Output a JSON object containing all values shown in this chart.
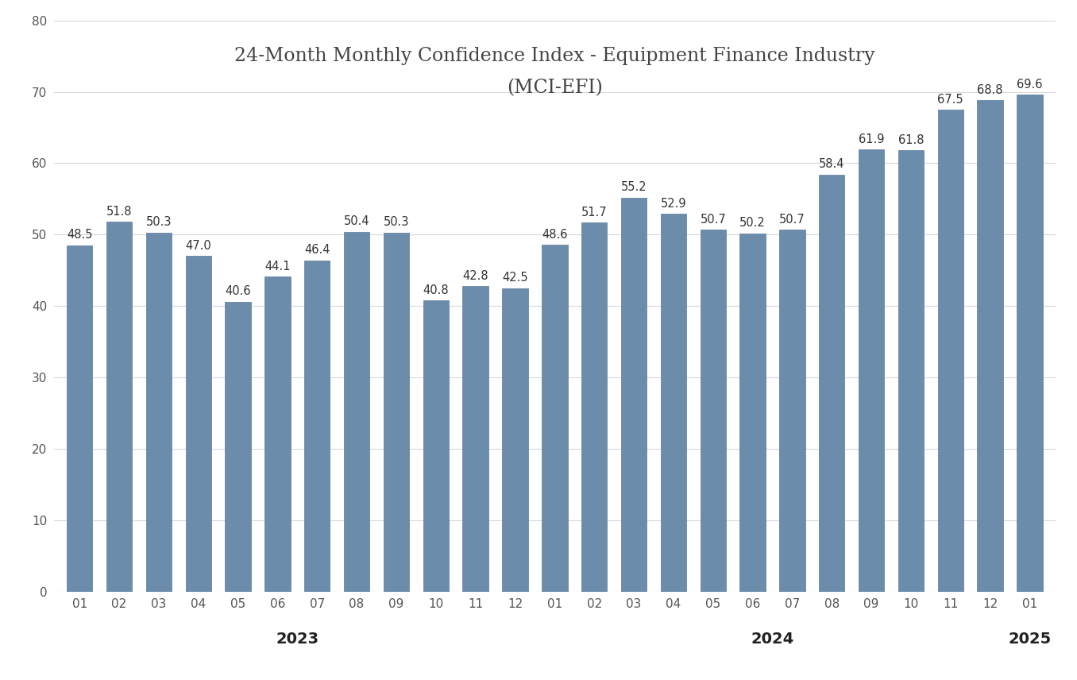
{
  "values": [
    48.5,
    51.8,
    50.3,
    47.0,
    40.6,
    44.1,
    46.4,
    50.4,
    50.3,
    40.8,
    42.8,
    42.5,
    48.6,
    51.7,
    55.2,
    52.9,
    50.7,
    50.2,
    50.7,
    58.4,
    61.9,
    61.8,
    67.5,
    68.8,
    69.6
  ],
  "x_labels": [
    "01",
    "02",
    "03",
    "04",
    "05",
    "06",
    "07",
    "08",
    "09",
    "10",
    "11",
    "12",
    "01",
    "02",
    "03",
    "04",
    "05",
    "06",
    "07",
    "08",
    "09",
    "10",
    "11",
    "12",
    "01"
  ],
  "year_labels": [
    "2023",
    "2024",
    "2025"
  ],
  "year_centers": [
    5.5,
    17.5,
    24.0
  ],
  "title_line1": "24-Month Monthly Confidence Index - Equipment Finance Industry",
  "title_line2": "(MCI-EFI)",
  "bar_color": "#6b8caa",
  "bar_edge_color": "#5a7a98",
  "ylim": [
    0,
    80
  ],
  "yticks": [
    0,
    10,
    20,
    30,
    40,
    50,
    60,
    70,
    80
  ],
  "background_color": "#ffffff",
  "grid_color": "#d8d8d8",
  "title_fontsize": 17,
  "year_fontsize": 14,
  "value_fontsize": 10.5,
  "tick_fontsize": 11
}
